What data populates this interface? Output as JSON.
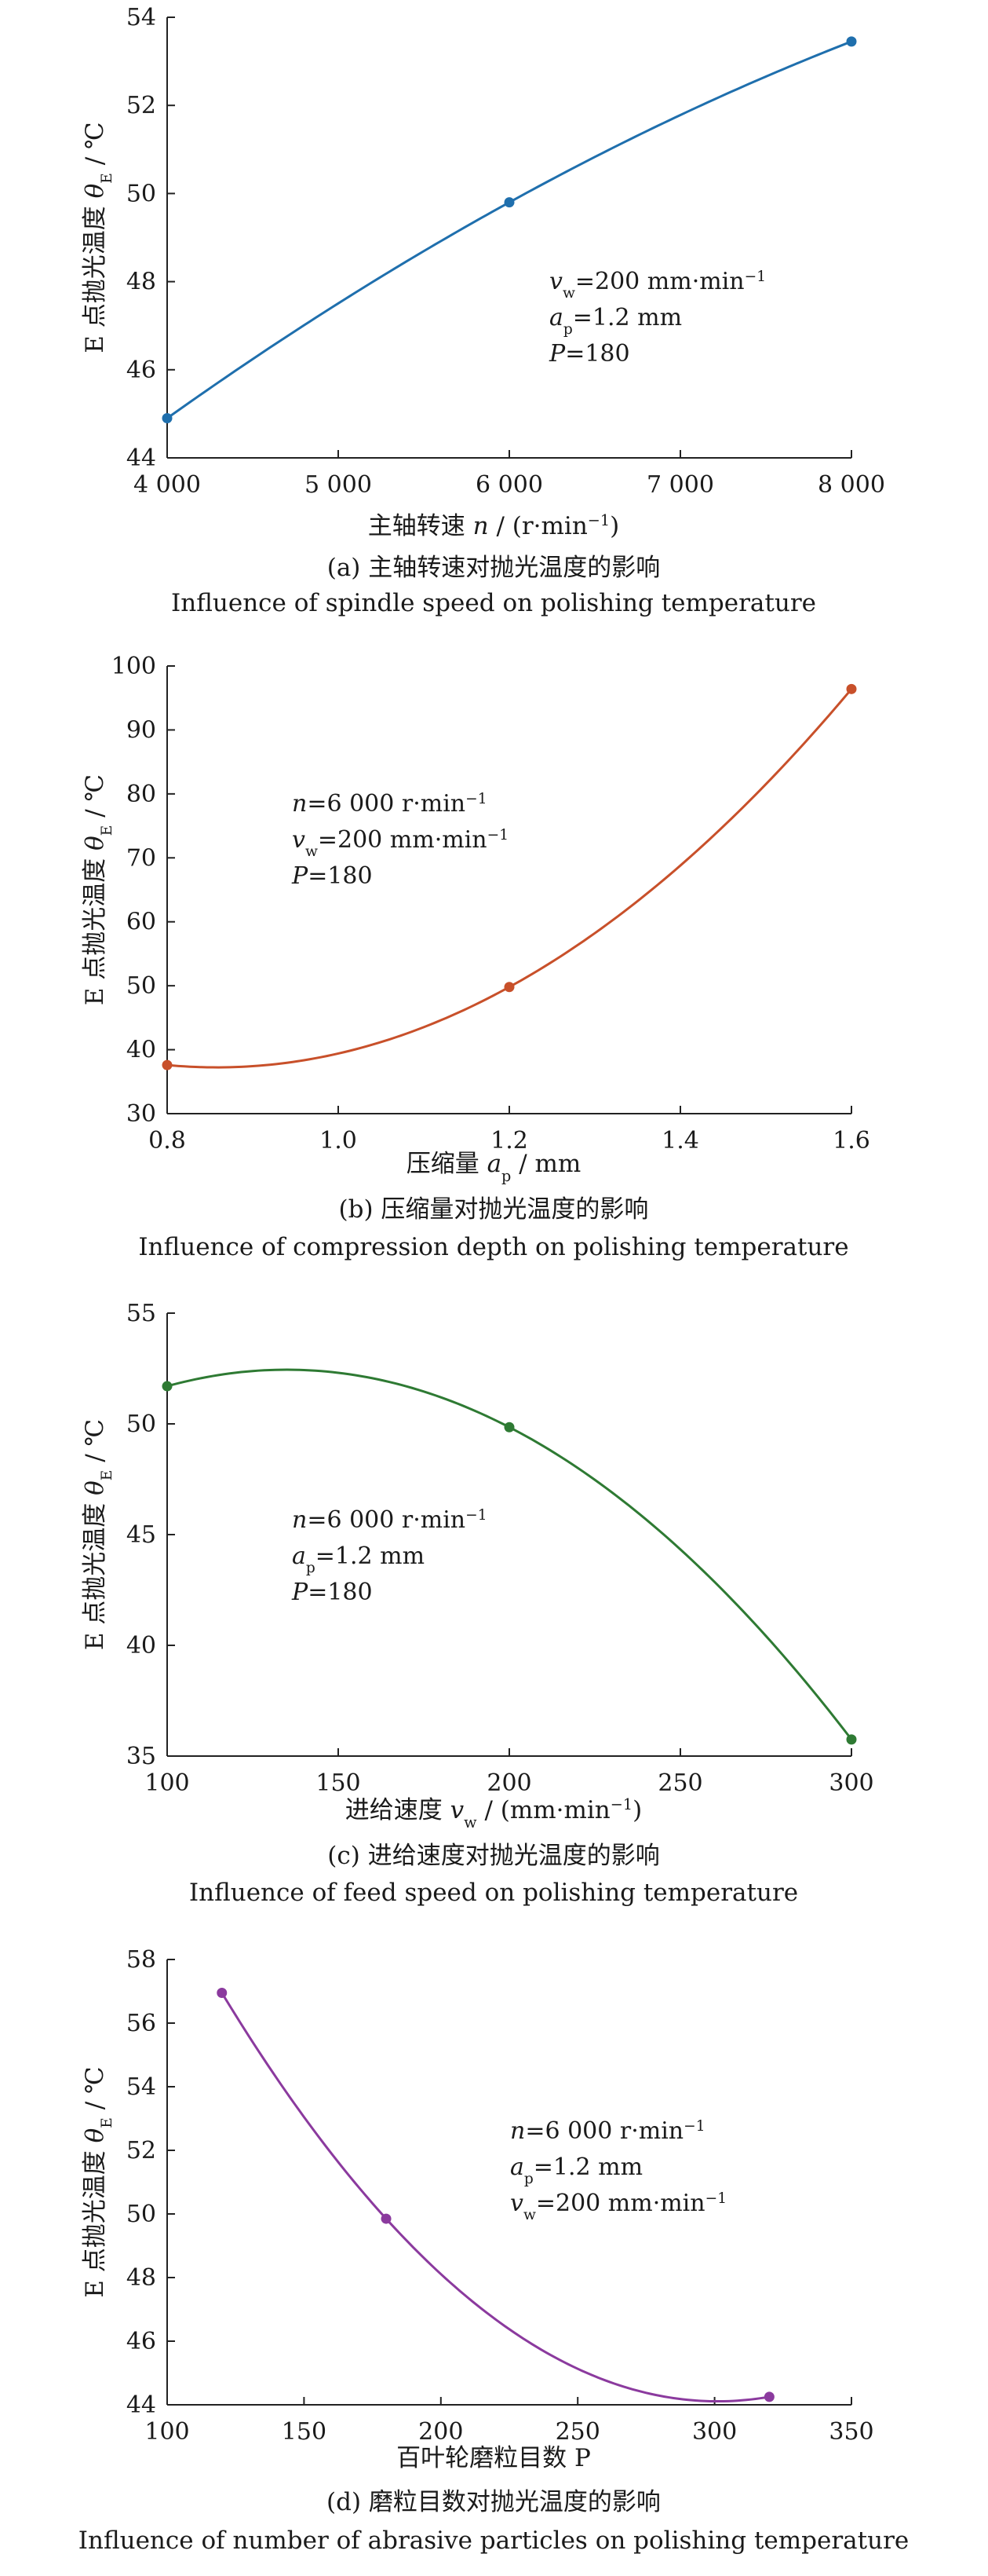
{
  "chart_data": [
    {
      "type": "line",
      "color": "#1f6fad",
      "x": [
        4000,
        6000,
        8000
      ],
      "y": [
        44.9,
        49.8,
        53.45
      ],
      "xlim": [
        4000,
        8000
      ],
      "ylim": [
        44,
        54
      ],
      "xticks": [
        4000,
        5000,
        6000,
        7000,
        8000
      ],
      "xtick_labels": [
        "4 000",
        "5 000",
        "6 000",
        "7 000",
        "8 000"
      ],
      "yticks": [
        44,
        46,
        48,
        50,
        52,
        54
      ],
      "ytick_labels": [
        "44",
        "46",
        "48",
        "50",
        "52",
        "54"
      ],
      "ylabel": "E 点抛光温度 θE / ℃",
      "xlabel": "主轴转速 n / (r·min⁻¹)",
      "caption_cn": "(a) 主轴转速对抛光温度的影响",
      "caption_en": "Influence of spindle speed on polishing temperature",
      "annotations": [
        "vw=200 mm·min⁻¹",
        "ap=1.2 mm",
        "P=180"
      ]
    },
    {
      "type": "line",
      "color": "#c8502a",
      "x": [
        0.8,
        1.2,
        1.6
      ],
      "y": [
        37.6,
        49.8,
        96.4
      ],
      "xlim": [
        0.8,
        1.6
      ],
      "ylim": [
        30,
        100
      ],
      "xticks": [
        0.8,
        1.0,
        1.2,
        1.4,
        1.6
      ],
      "xtick_labels": [
        "0.8",
        "1.0",
        "1.2",
        "1.4",
        "1.6"
      ],
      "yticks": [
        30,
        40,
        50,
        60,
        70,
        80,
        90,
        100
      ],
      "ytick_labels": [
        "30",
        "40",
        "50",
        "60",
        "70",
        "80",
        "90",
        "100"
      ],
      "ylabel": "E 点抛光温度 θE / ℃",
      "xlabel": "压缩量 ap / mm",
      "caption_cn": "(b) 压缩量对抛光温度的影响",
      "caption_en": "Influence of compression depth on polishing temperature",
      "annotations": [
        "n=6 000 r·min⁻¹",
        "vw=200 mm·min⁻¹",
        "P=180"
      ]
    },
    {
      "type": "line",
      "color": "#2e7a33",
      "x": [
        100,
        200,
        300
      ],
      "y": [
        51.7,
        49.85,
        35.75
      ],
      "xlim": [
        100,
        300
      ],
      "ylim": [
        35,
        55
      ],
      "xticks": [
        100,
        150,
        200,
        250,
        300
      ],
      "xtick_labels": [
        "100",
        "150",
        "200",
        "250",
        "300"
      ],
      "yticks": [
        35,
        40,
        45,
        50,
        55
      ],
      "ytick_labels": [
        "35",
        "40",
        "45",
        "50",
        "55"
      ],
      "ylabel": "E 点抛光温度 θE / ℃",
      "xlabel": "进给速度 vw / (mm·min⁻¹)",
      "caption_cn": "(c) 进给速度对抛光温度的影响",
      "caption_en": "Influence of feed speed on polishing temperature",
      "annotations": [
        "n=6 000 r·min⁻¹",
        "ap=1.2 mm",
        "P=180"
      ]
    },
    {
      "type": "line",
      "color": "#8b3a9e",
      "x": [
        120,
        180,
        320
      ],
      "y": [
        56.95,
        49.85,
        44.25
      ],
      "xlim": [
        100,
        350
      ],
      "ylim": [
        44,
        58
      ],
      "xticks": [
        100,
        150,
        200,
        250,
        300,
        350
      ],
      "xtick_labels": [
        "100",
        "150",
        "200",
        "250",
        "300",
        "350"
      ],
      "yticks": [
        44,
        46,
        48,
        50,
        52,
        54,
        56,
        58
      ],
      "ytick_labels": [
        "44",
        "46",
        "48",
        "50",
        "52",
        "54",
        "56",
        "58"
      ],
      "ylabel": "E 点抛光温度 θE / ℃",
      "xlabel": "百叶轮磨粒目数 P",
      "caption_cn": "(d) 磨粒目数对抛光温度的影响",
      "caption_en": "Influence of number of abrasive particles on polishing temperature",
      "annotations": [
        "n=6 000 r·min⁻¹",
        "ap=1.2 mm",
        "vw=200 mm·min⁻¹"
      ]
    }
  ]
}
